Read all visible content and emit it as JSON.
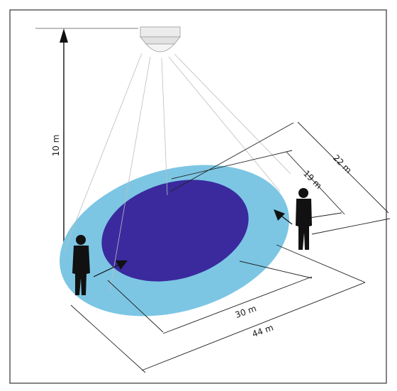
{
  "dimensions": {
    "ceiling_height": "10 m",
    "outer_width": "22 m",
    "inner_width": "19 m",
    "inner_length": "30 m",
    "outer_length": "44 m"
  },
  "colors": {
    "outer_zone": "#7cc6e4",
    "inner_zone": "#3a2a9e",
    "frame": "#333333",
    "lines": "#222222",
    "cone_lines": "#bdbdbd",
    "person": "#111111"
  }
}
